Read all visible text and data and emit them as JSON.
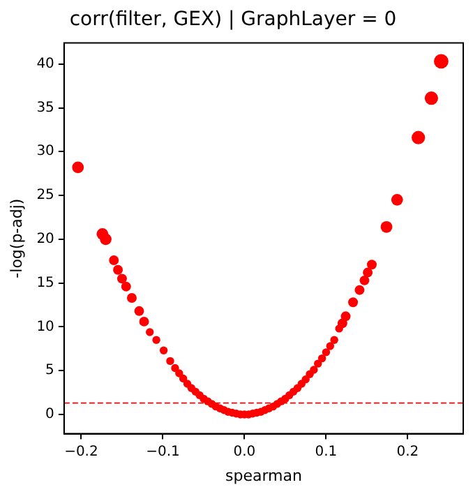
{
  "chart_data": {
    "type": "scatter",
    "title": "corr(filter, GEX) | GraphLayer = 0",
    "xlabel": "spearman",
    "ylabel": "-log(p-adj)",
    "xlim": [
      -0.221,
      0.268
    ],
    "ylim": [
      -2.2,
      42.4
    ],
    "xticks": [
      {
        "value": -0.2,
        "label": "−0.2"
      },
      {
        "value": -0.1,
        "label": "−0.1"
      },
      {
        "value": 0,
        "label": "0.0"
      },
      {
        "value": 0.1,
        "label": "0.1"
      },
      {
        "value": 0.2,
        "label": "0.2"
      }
    ],
    "yticks": [
      0,
      5,
      10,
      15,
      20,
      25,
      30,
      35,
      40
    ],
    "grid": false,
    "legend": false,
    "marker": "circle",
    "ref_lines": [
      {
        "axis": "y",
        "value": 1.3,
        "color": "#ff0000",
        "line_style": "dashed"
      }
    ],
    "series": [
      {
        "color": "#ff0000",
        "x": [
          -0.204,
          -0.174,
          -0.17,
          -0.16,
          -0.155,
          -0.15,
          -0.145,
          -0.138,
          -0.129,
          -0.123,
          -0.116,
          -0.108,
          -0.099,
          -0.091,
          -0.085,
          -0.08,
          -0.075,
          -0.07,
          -0.065,
          -0.06,
          -0.055,
          -0.05,
          -0.045,
          -0.04,
          -0.035,
          -0.03,
          -0.025,
          -0.02,
          -0.015,
          -0.01,
          -0.005,
          0,
          0.005,
          0.01,
          0.015,
          0.02,
          0.025,
          0.03,
          0.035,
          0.04,
          0.045,
          0.05,
          0.055,
          0.06,
          0.065,
          0.07,
          0.075,
          0.08,
          0.085,
          0.09,
          0.095,
          0.1,
          0.105,
          0.11,
          0.116,
          0.12,
          0.124,
          0.133,
          0.141,
          0.147,
          0.151,
          0.156,
          0.174,
          0.187,
          0.213,
          0.229,
          0.241
        ],
        "values": [
          28.2,
          20.6,
          20.0,
          17.6,
          16.5,
          15.5,
          14.6,
          13.3,
          11.8,
          10.6,
          9.4,
          8.5,
          7.3,
          6.1,
          5.3,
          4.7,
          4.1,
          3.5,
          3.0,
          2.6,
          2.2,
          1.8,
          1.5,
          1.2,
          0.9,
          0.7,
          0.5,
          0.3,
          0.2,
          0.1,
          0,
          0,
          0,
          0.1,
          0.2,
          0.3,
          0.5,
          0.7,
          0.9,
          1.2,
          1.5,
          1.8,
          2.2,
          2.6,
          3.0,
          3.5,
          4.0,
          4.6,
          5.1,
          5.8,
          6.4,
          7.1,
          7.8,
          8.5,
          9.8,
          10.4,
          11.2,
          12.8,
          14.2,
          15.3,
          16.2,
          17.1,
          21.4,
          24.5,
          31.6,
          36.1,
          40.3
        ],
        "sizes": [
          0.65,
          0.65,
          0.65,
          0.45,
          0.45,
          0.45,
          0.45,
          0.45,
          0.45,
          0.45,
          0.3,
          0.3,
          0.3,
          0.3,
          0.3,
          0.3,
          0.3,
          0.3,
          0.3,
          0.3,
          0.3,
          0.3,
          0.3,
          0.3,
          0.3,
          0.3,
          0.3,
          0.3,
          0.3,
          0.3,
          0.3,
          0.3,
          0.3,
          0.3,
          0.3,
          0.3,
          0.3,
          0.3,
          0.3,
          0.3,
          0.3,
          0.3,
          0.3,
          0.3,
          0.3,
          0.3,
          0.3,
          0.3,
          0.3,
          0.3,
          0.3,
          0.3,
          0.3,
          0.3,
          0.3,
          0.45,
          0.45,
          0.45,
          0.45,
          0.45,
          0.45,
          0.45,
          0.65,
          0.65,
          0.85,
          0.85,
          1
        ]
      }
    ]
  }
}
